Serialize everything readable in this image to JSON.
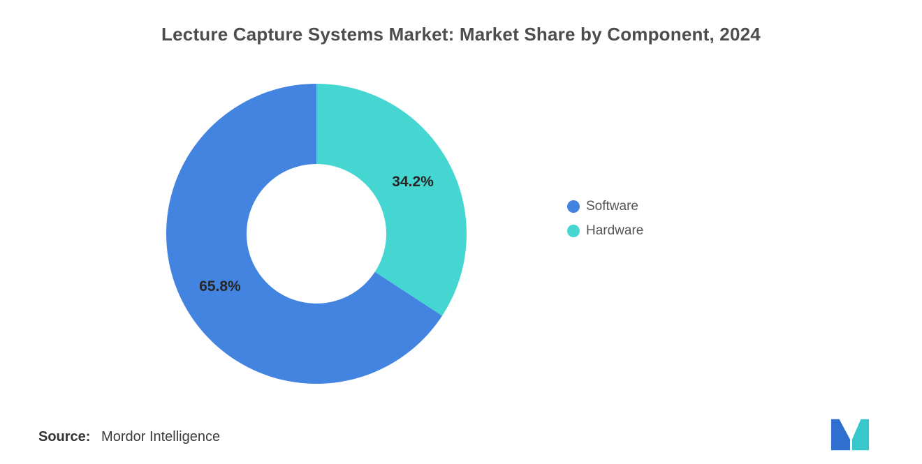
{
  "chart_data": {
    "type": "pie",
    "donut": true,
    "title": "Lecture Capture Systems Market: Market Share by Component, 2024",
    "legend_position": "right",
    "series": [
      {
        "label": "Software",
        "value": 65.8,
        "data_label": "65.8%",
        "color": "#4484E1"
      },
      {
        "label": "Hardware",
        "value": 34.2,
        "data_label": "34.2%",
        "color": "#45D6D2"
      }
    ]
  },
  "source": {
    "label": "Source:",
    "text": "Mordor Intelligence"
  },
  "logo": {
    "name": "mordor-intelligence-logo",
    "blue": "#2F6FD0",
    "teal": "#38C8CC"
  }
}
